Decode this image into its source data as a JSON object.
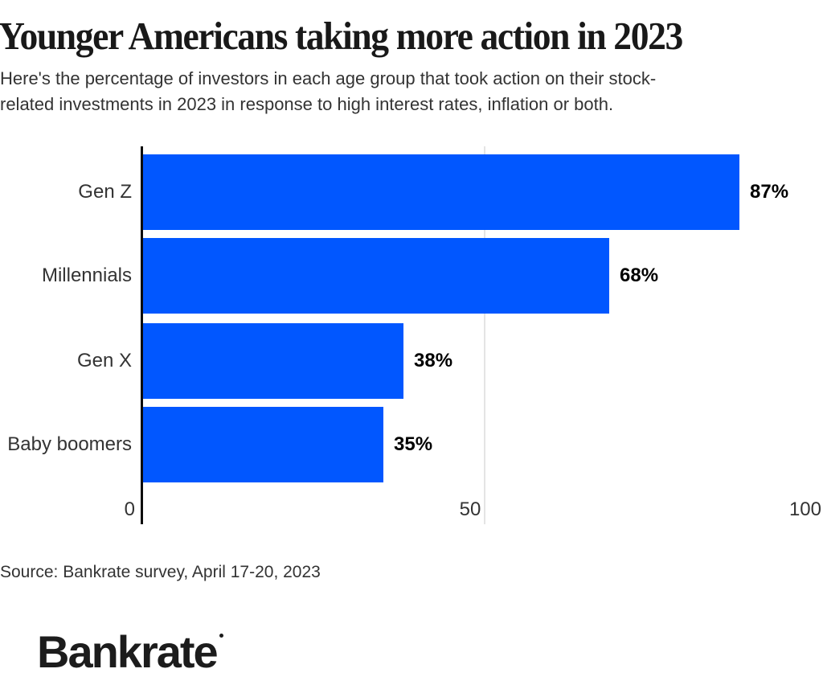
{
  "header": {
    "title": "Younger Americans taking more action in 2023",
    "subtitle_line1": "Here's the percentage of investors in each age group that took action on their stock-",
    "subtitle_line2": "related investments in 2023 in response to high interest rates, inflation or both."
  },
  "chart_data": {
    "type": "bar",
    "orientation": "horizontal",
    "title": "Younger Americans taking more action in 2023",
    "categories": [
      "Gen Z",
      "Millennials",
      "Gen X",
      "Baby boomers"
    ],
    "values": [
      87,
      68,
      38,
      35
    ],
    "data_labels": [
      "87%",
      "68%",
      "38%",
      "35%"
    ],
    "xlabel": "",
    "ylabel": "",
    "xticks": [
      "0",
      "50",
      "100"
    ],
    "xlim": [
      0,
      100
    ],
    "grid": "single vertical gridline at 50",
    "legend": "none"
  },
  "footer": {
    "source": "Source: Bankrate survey, April 17-20, 2023",
    "logo_text": "Bankrate"
  },
  "colors": {
    "bar": "#0157ff",
    "axis": "#0c0c0c",
    "gridline": "#e4e4e4",
    "title_text": "#191919",
    "body_text": "#333333",
    "value_label": "#000000",
    "background": "#ffffff"
  }
}
